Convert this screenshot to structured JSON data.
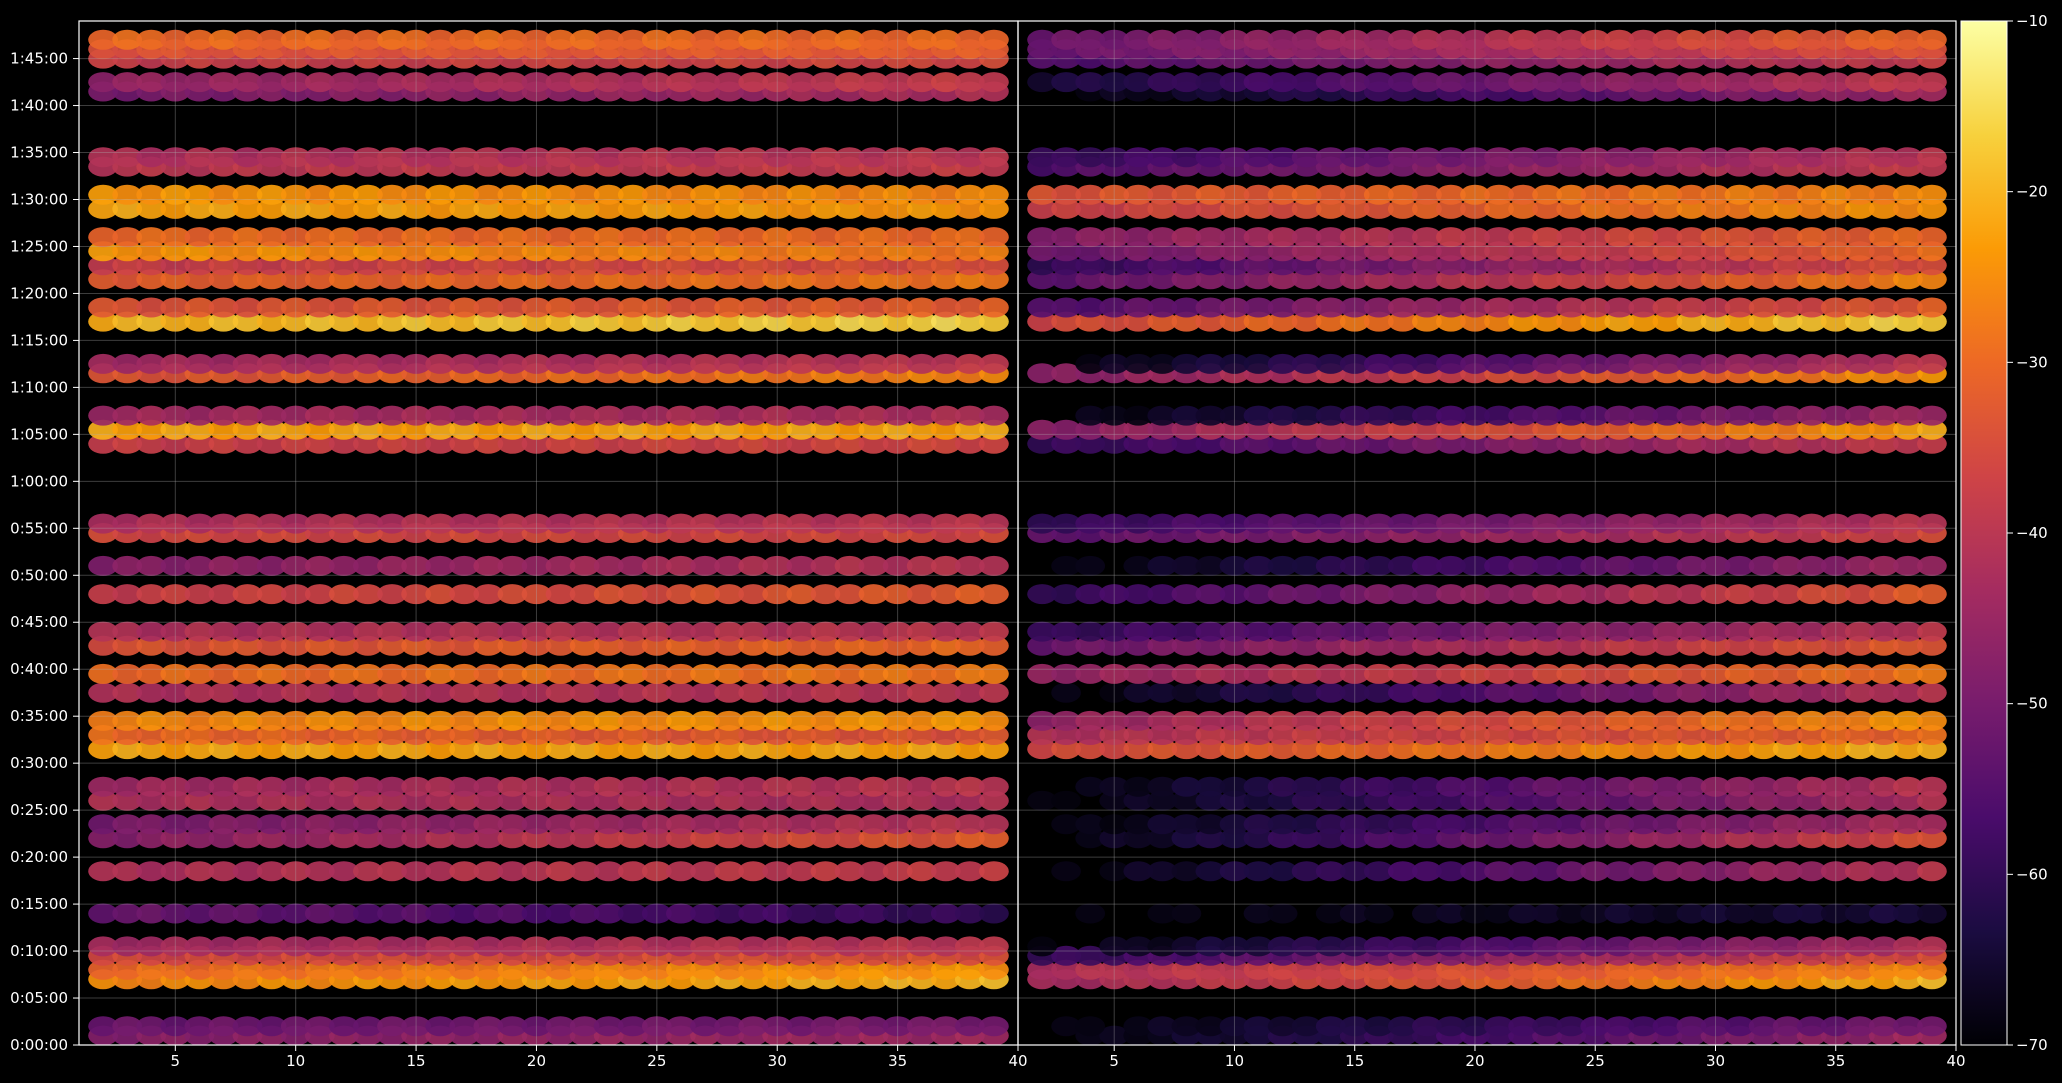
{
  "chart_data": {
    "type": "heatmap",
    "title": "",
    "xlabel": "",
    "ylabel": "",
    "background": "#000000",
    "panels": [
      {
        "xlim": [
          1,
          40
        ],
        "xticks": [
          5,
          10,
          15,
          20,
          25,
          30,
          35,
          40
        ],
        "xtick_labels": [
          "5",
          "10",
          "15",
          "20",
          "25",
          "30",
          "35",
          "40"
        ],
        "x_columns": [
          2,
          39
        ]
      },
      {
        "xlim": [
          1,
          40
        ],
        "xticks": [
          5,
          10,
          15,
          20,
          25,
          30,
          35,
          40
        ],
        "xtick_labels": [
          "5",
          "10",
          "15",
          "20",
          "25",
          "30",
          "35",
          "40"
        ],
        "x_columns": [
          2,
          39
        ]
      }
    ],
    "y_axis": {
      "unit": "seconds",
      "ylim": [
        0,
        6540
      ],
      "ticks": [
        0,
        300,
        600,
        900,
        1200,
        1500,
        1800,
        2100,
        2400,
        2700,
        3000,
        3300,
        3600,
        3900,
        4200,
        4500,
        4800,
        5100,
        5400,
        5700,
        6000,
        6300
      ],
      "tick_labels": [
        "0:00:00",
        "0:05:00",
        "0:10:00",
        "0:15:00",
        "0:20:00",
        "0:25:00",
        "0:30:00",
        "0:35:00",
        "0:40:00",
        "0:45:00",
        "0:50:00",
        "0:55:00",
        "1:00:00",
        "1:05:00",
        "1:10:00",
        "1:15:00",
        "1:20:00",
        "1:25:00",
        "1:30:00",
        "1:35:00",
        "1:40:00",
        "1:45:00"
      ]
    },
    "grid": true,
    "colorbar": {
      "colormap": "inferno",
      "vmin": -70,
      "vmax": -10,
      "ticks": [
        -70,
        -60,
        -50,
        -40,
        -30,
        -20,
        -10
      ],
      "tick_labels": [
        "−70",
        "−60",
        "−50",
        "−40",
        "−30",
        "−20",
        "−10"
      ],
      "stops": [
        "#000004",
        "#1b0c41",
        "#4a0c6b",
        "#781c6d",
        "#a52c60",
        "#cf4446",
        "#ed6925",
        "#fb9b06",
        "#f7d13d",
        "#fcffa4"
      ]
    },
    "rows": [
      {
        "t": 60,
        "level": [
          -48,
          -44
        ],
        "level_right": [
          -70,
          -44
        ]
      },
      {
        "t": 120,
        "level": [
          -52,
          -50
        ],
        "level_right": [
          -70,
          -50
        ]
      },
      {
        "t": 420,
        "level": [
          -26,
          -20
        ],
        "level_right": [
          -44,
          -20
        ]
      },
      {
        "t": 480,
        "level": [
          -30,
          -24
        ],
        "level_right": [
          -42,
          -26
        ]
      },
      {
        "t": 570,
        "level": [
          -36,
          -34
        ],
        "level_right": [
          -60,
          -34
        ]
      },
      {
        "t": 630,
        "level": [
          -44,
          -40
        ],
        "level_right": [
          -70,
          -42
        ]
      },
      {
        "t": 840,
        "level": [
          -52,
          -60
        ],
        "level_right": [
          -70,
          -64
        ]
      },
      {
        "t": 1110,
        "level": [
          -42,
          -38
        ],
        "level_right": [
          -70,
          -40
        ]
      },
      {
        "t": 1320,
        "level": [
          -48,
          -32
        ],
        "level_right": [
          -70,
          -34
        ]
      },
      {
        "t": 1410,
        "level": [
          -50,
          -40
        ],
        "level_right": [
          -70,
          -42
        ]
      },
      {
        "t": 1560,
        "level": [
          -42,
          -42
        ],
        "level_right": [
          -70,
          -42
        ]
      },
      {
        "t": 1650,
        "level": [
          -44,
          -40
        ],
        "level_right": [
          -70,
          -40
        ]
      },
      {
        "t": 1890,
        "level": [
          -22,
          -22
        ],
        "level_right": [
          -36,
          -20
        ]
      },
      {
        "t": 1980,
        "level": [
          -30,
          -34
        ],
        "level_right": [
          -42,
          -30
        ]
      },
      {
        "t": 2070,
        "level": [
          -26,
          -24
        ],
        "level_right": [
          -46,
          -24
        ]
      },
      {
        "t": 2250,
        "level": [
          -42,
          -40
        ],
        "level_right": [
          -70,
          -40
        ]
      },
      {
        "t": 2370,
        "level": [
          -30,
          -28
        ],
        "level_right": [
          -46,
          -28
        ]
      },
      {
        "t": 2550,
        "level": [
          -34,
          -30
        ],
        "level_right": [
          -52,
          -32
        ]
      },
      {
        "t": 2640,
        "level": [
          -42,
          -40
        ],
        "level_right": [
          -60,
          -40
        ]
      },
      {
        "t": 2880,
        "level": [
          -38,
          -32
        ],
        "level_right": [
          -60,
          -32
        ]
      },
      {
        "t": 3060,
        "level": [
          -48,
          -40
        ],
        "level_right": [
          -70,
          -44
        ]
      },
      {
        "t": 3270,
        "level": [
          -36,
          -36
        ],
        "level_right": [
          -54,
          -36
        ]
      },
      {
        "t": 3330,
        "level": [
          -42,
          -40
        ],
        "level_right": [
          -60,
          -40
        ]
      },
      {
        "t": 3840,
        "level": [
          -38,
          -36
        ],
        "level_right": [
          -60,
          -38
        ]
      },
      {
        "t": 3930,
        "level": [
          -22,
          -22
        ],
        "level_right": [
          -48,
          -22
        ]
      },
      {
        "t": 4020,
        "level": [
          -44,
          -42
        ],
        "level_right": [
          -70,
          -44
        ]
      },
      {
        "t": 4290,
        "level": [
          -34,
          -26
        ],
        "level_right": [
          -48,
          -24
        ]
      },
      {
        "t": 4350,
        "level": [
          -44,
          -40
        ],
        "level_right": [
          -70,
          -40
        ]
      },
      {
        "t": 4620,
        "level": [
          -20,
          -16
        ],
        "level_right": [
          -36,
          -16
        ]
      },
      {
        "t": 4710,
        "level": [
          -34,
          -32
        ],
        "level_right": [
          -56,
          -32
        ]
      },
      {
        "t": 4890,
        "level": [
          -32,
          -28
        ],
        "level_right": [
          -54,
          -26
        ]
      },
      {
        "t": 4980,
        "level": [
          -38,
          -34
        ],
        "level_right": [
          -60,
          -34
        ]
      },
      {
        "t": 5070,
        "level": [
          -24,
          -28
        ],
        "level_right": [
          -52,
          -30
        ]
      },
      {
        "t": 5160,
        "level": [
          -30,
          -30
        ],
        "level_right": [
          -48,
          -30
        ]
      },
      {
        "t": 5340,
        "level": [
          -22,
          -24
        ],
        "level_right": [
          -38,
          -24
        ]
      },
      {
        "t": 5430,
        "level": [
          -24,
          -26
        ],
        "level_right": [
          -34,
          -26
        ]
      },
      {
        "t": 5610,
        "level": [
          -40,
          -38
        ],
        "level_right": [
          -56,
          -38
        ]
      },
      {
        "t": 5670,
        "level": [
          -42,
          -40
        ],
        "level_right": [
          -60,
          -40
        ]
      },
      {
        "t": 6090,
        "level": [
          -50,
          -42
        ],
        "level_right": [
          -70,
          -44
        ]
      },
      {
        "t": 6150,
        "level": [
          -46,
          -38
        ],
        "level_right": [
          -64,
          -38
        ]
      },
      {
        "t": 6300,
        "level": [
          -38,
          -36
        ],
        "level_right": [
          -56,
          -38
        ]
      },
      {
        "t": 6360,
        "level": [
          -34,
          -32
        ],
        "level_right": [
          -52,
          -34
        ]
      },
      {
        "t": 6420,
        "level": [
          -30,
          -30
        ],
        "level_right": [
          -52,
          -30
        ]
      }
    ]
  }
}
